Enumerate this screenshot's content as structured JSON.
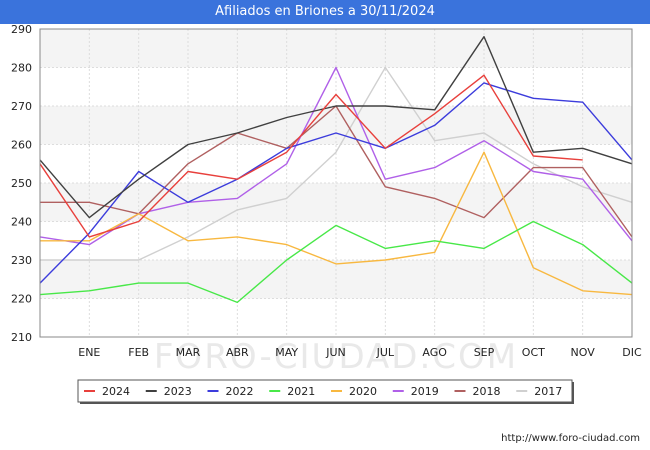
{
  "header": {
    "title": "Afiliados en Briones a 30/11/2024"
  },
  "footer": {
    "url": "http://www.foro-ciudad.com"
  },
  "watermark": "FORO-CIUDAD.COM",
  "chart_data": {
    "type": "line",
    "title": "Afiliados en Briones a 30/11/2024",
    "xlabel": "",
    "ylabel": "",
    "categories": [
      "",
      "ENE",
      "FEB",
      "MAR",
      "ABR",
      "MAY",
      "JUN",
      "JUL",
      "AGO",
      "SEP",
      "OCT",
      "NOV",
      "DIC"
    ],
    "ylim": [
      210,
      290
    ],
    "yticks": [
      210,
      220,
      230,
      240,
      250,
      260,
      270,
      280,
      290
    ],
    "grid": true,
    "legend_position": "bottom",
    "series": [
      {
        "name": "2024",
        "color": "#e8403c",
        "values": [
          255,
          236,
          240,
          253,
          251,
          258,
          273,
          259,
          268,
          278,
          257,
          256,
          null
        ]
      },
      {
        "name": "2023",
        "color": "#404040",
        "values": [
          256,
          241,
          251,
          260,
          263,
          267,
          270,
          270,
          269,
          288,
          258,
          259,
          255
        ]
      },
      {
        "name": "2022",
        "color": "#3c3cdc",
        "values": [
          224,
          237,
          253,
          245,
          251,
          259,
          263,
          259,
          265,
          276,
          272,
          271,
          256
        ]
      },
      {
        "name": "2021",
        "color": "#48e848",
        "values": [
          221,
          222,
          224,
          224,
          219,
          230,
          239,
          233,
          235,
          233,
          240,
          234,
          224
        ]
      },
      {
        "name": "2020",
        "color": "#f8b840",
        "values": [
          235,
          235,
          242,
          235,
          236,
          234,
          229,
          230,
          232,
          258,
          228,
          222,
          221
        ]
      },
      {
        "name": "2019",
        "color": "#b060e8",
        "values": [
          236,
          234,
          242,
          245,
          246,
          255,
          280,
          251,
          254,
          261,
          253,
          251,
          235
        ]
      },
      {
        "name": "2018",
        "color": "#b06060",
        "values": [
          245,
          245,
          242,
          255,
          263,
          259,
          270,
          249,
          246,
          241,
          254,
          254,
          236
        ]
      },
      {
        "name": "2017",
        "color": "#d0d0d0",
        "values": [
          230,
          230,
          230,
          236,
          243,
          246,
          258,
          280,
          261,
          263,
          255,
          249,
          245
        ]
      }
    ]
  }
}
